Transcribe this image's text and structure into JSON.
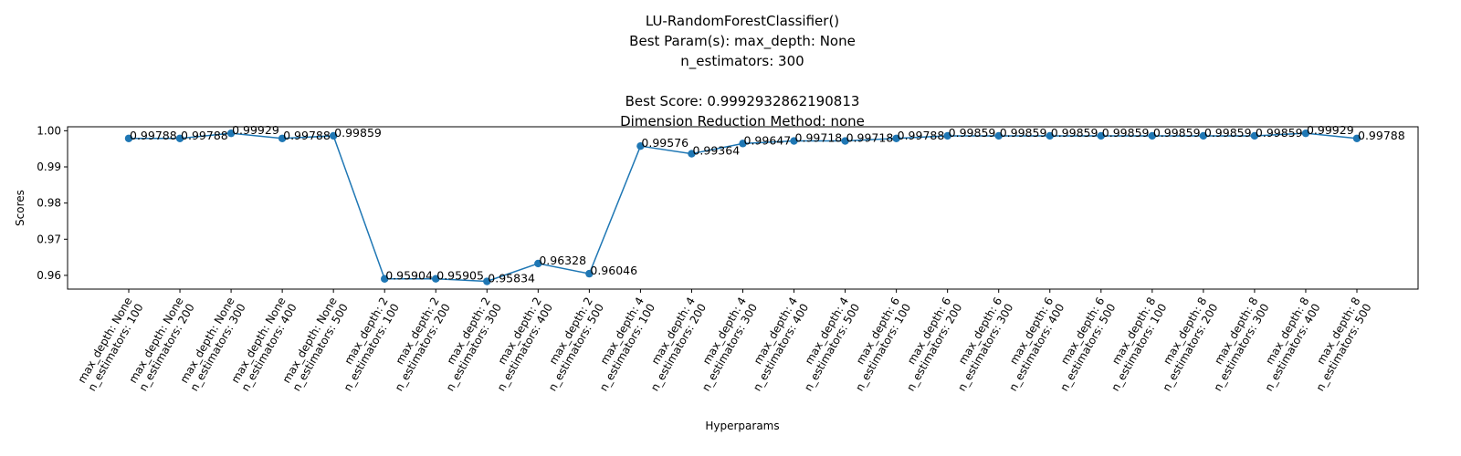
{
  "chart_data": {
    "type": "line",
    "title_lines": [
      "LU-RandomForestClassifier()",
      "Best Param(s): max_depth: None",
      "n_estimators: 300",
      "",
      "Best Score: 0.9992932862190813",
      "Dimension Reduction Method: none"
    ],
    "xlabel": "Hyperparams",
    "ylabel": "Scores",
    "ylim": [
      0.9562,
      1.0011
    ],
    "yticks": [
      0.96,
      0.97,
      0.98,
      0.99,
      1.0
    ],
    "ytick_labels": [
      "0.96",
      "0.97",
      "0.98",
      "0.99",
      "1.00"
    ],
    "grid": false,
    "color": "#1f77b4",
    "categories": [
      [
        "max_depth: None",
        "n_estimators: 100"
      ],
      [
        "max_depth: None",
        "n_estimators: 200"
      ],
      [
        "max_depth: None",
        "n_estimators: 300"
      ],
      [
        "max_depth: None",
        "n_estimators: 400"
      ],
      [
        "max_depth: None",
        "n_estimators: 500"
      ],
      [
        "max_depth: 2",
        "n_estimators: 100"
      ],
      [
        "max_depth: 2",
        "n_estimators: 200"
      ],
      [
        "max_depth: 2",
        "n_estimators: 300"
      ],
      [
        "max_depth: 2",
        "n_estimators: 400"
      ],
      [
        "max_depth: 2",
        "n_estimators: 500"
      ],
      [
        "max_depth: 4",
        "n_estimators: 100"
      ],
      [
        "max_depth: 4",
        "n_estimators: 200"
      ],
      [
        "max_depth: 4",
        "n_estimators: 300"
      ],
      [
        "max_depth: 4",
        "n_estimators: 400"
      ],
      [
        "max_depth: 4",
        "n_estimators: 500"
      ],
      [
        "max_depth: 6",
        "n_estimators: 100"
      ],
      [
        "max_depth: 6",
        "n_estimators: 200"
      ],
      [
        "max_depth: 6",
        "n_estimators: 300"
      ],
      [
        "max_depth: 6",
        "n_estimators: 400"
      ],
      [
        "max_depth: 6",
        "n_estimators: 500"
      ],
      [
        "max_depth: 8",
        "n_estimators: 100"
      ],
      [
        "max_depth: 8",
        "n_estimators: 200"
      ],
      [
        "max_depth: 8",
        "n_estimators: 300"
      ],
      [
        "max_depth: 8",
        "n_estimators: 400"
      ],
      [
        "max_depth: 8",
        "n_estimators: 500"
      ]
    ],
    "values": [
      0.99788,
      0.99788,
      0.99929,
      0.99788,
      0.99859,
      0.95904,
      0.95905,
      0.95834,
      0.96328,
      0.96046,
      0.99576,
      0.99364,
      0.99647,
      0.99718,
      0.99718,
      0.99788,
      0.99859,
      0.99859,
      0.99859,
      0.99859,
      0.99859,
      0.99859,
      0.99859,
      0.99929,
      0.99788
    ],
    "value_labels": [
      "0.99788",
      "0.99788",
      "0.99929",
      "0.99788",
      "0.99859",
      "0.95904",
      "0.95905",
      "0.95834",
      "0.96328",
      "0.96046",
      "0.99576",
      "0.99364",
      "0.99647",
      "0.99718",
      "0.99718",
      "0.99788",
      "0.99859",
      "0.99859",
      "0.99859",
      "0.99859",
      "0.99859",
      "0.99859",
      "0.99859",
      "0.99929",
      "0.99788"
    ]
  }
}
